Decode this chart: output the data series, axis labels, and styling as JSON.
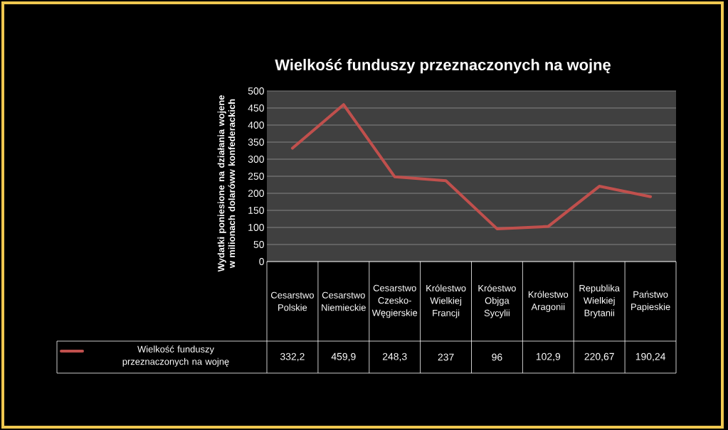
{
  "chart_data": {
    "type": "line",
    "title": "Wielkość funduszy przeznaczonych na wojnę",
    "ylabel": "Wydatki poniesione na działania wojene w milionach dolaróww konfederackich",
    "categories": [
      "Cesarstwo Polskie",
      "Cesarstwo Niemieckie",
      "Cesarstwo Czesko-Węgierskie",
      "Królestwo Wielkiej Francji",
      "Króestwo Objga Sycylii",
      "Królestwo Aragonii",
      "Republika Wielkiej Brytanii",
      "Państwo Papieskie"
    ],
    "series": [
      {
        "name": "Wielkość funduszy przeznaczonych na wojnę",
        "color": "#c0504d",
        "values": [
          332.2,
          459.9,
          248.3,
          237,
          96,
          102.9,
          220.67,
          190.24
        ],
        "value_labels": [
          "332,2",
          "459,9",
          "248,3",
          "237",
          "96",
          "102,9",
          "220,67",
          "190,24"
        ]
      }
    ],
    "ylim": [
      0,
      500
    ],
    "yticks": [
      0,
      50,
      100,
      150,
      200,
      250,
      300,
      350,
      400,
      450,
      500
    ],
    "grid": "y",
    "legend": "bottom",
    "marker": "none",
    "line_style": "solid"
  }
}
